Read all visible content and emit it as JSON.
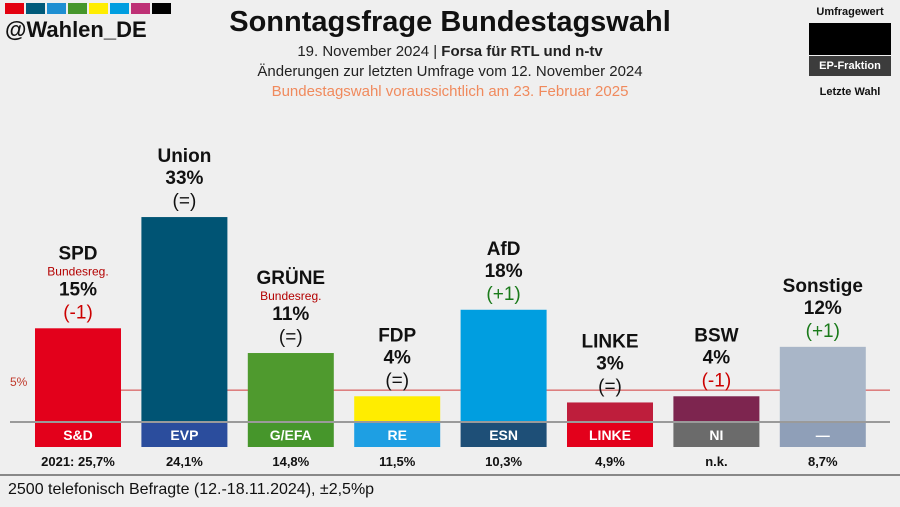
{
  "header": {
    "handle": "@Wahlen_DE",
    "brand_colors": [
      "#e3000f",
      "#005a7a",
      "#1e8fd2",
      "#46962b",
      "#ffed00",
      "#009ee0",
      "#be3075",
      "#000000"
    ],
    "title": "Sonntagsfrage Bundestagswahl",
    "subtitle_date": "19. November 2024 | ",
    "subtitle_source": "Forsa für RTL und n-tv",
    "subtitle_change": "Änderungen zur letzten Umfrage vom 12. November 2024",
    "subtitle_election": "Bundestagswahl voraussichtlich am 23. Februar 2025"
  },
  "legend": {
    "value_label": "Umfragewert",
    "group_label": "EP-Fraktion",
    "last_label": "Letzte Wahl"
  },
  "footer": {
    "note": "2500 telefonisch Befragte (12.-18.11.2024), ±2,5%p"
  },
  "chart_data": {
    "type": "bar",
    "title": "Sonntagsfrage Bundestagswahl",
    "ylim": [
      0,
      40
    ],
    "threshold": {
      "value": 5,
      "label": "5%"
    },
    "categories": [
      "SPD",
      "Union",
      "GRÜNE",
      "FDP",
      "AfD",
      "LINKE",
      "BSW",
      "Sonstige"
    ],
    "values": [
      15,
      33,
      11,
      4,
      18,
      3,
      4,
      12
    ],
    "value_labels": [
      "15%",
      "33%",
      "11%",
      "4%",
      "18%",
      "3%",
      "4%",
      "12%"
    ],
    "changes": [
      "(-1)",
      "(=)",
      "(=)",
      "(=)",
      "(+1)",
      "(=)",
      "(-1)",
      "(+1)"
    ],
    "change_colors": [
      "#cc0000",
      "#111111",
      "#111111",
      "#111111",
      "#1a7a1a",
      "#111111",
      "#cc0000",
      "#1a7a1a"
    ],
    "notes": [
      "Bundesreg.",
      "",
      "Bundesreg.",
      "",
      "",
      "",
      "",
      ""
    ],
    "bar_colors": [
      "#e3001b",
      "#005474",
      "#4f9a2e",
      "#ffed00",
      "#009ee0",
      "#be1e3c",
      "#7d254f",
      "#a9b6c8"
    ],
    "groups": [
      "S&D",
      "EVP",
      "G/EFA",
      "RE",
      "ESN",
      "LINKE",
      "NI",
      "—"
    ],
    "group_colors": [
      "#e3001b",
      "#2b4d9d",
      "#46962b",
      "#1e9fe3",
      "#1e4f77",
      "#e3001b",
      "#6b6b6b",
      "#8f9fb8"
    ],
    "last_election": [
      "2021: 25,7%",
      "24,1%",
      "14,8%",
      "11,5%",
      "10,3%",
      "4,9%",
      "n.k.",
      "8,7%"
    ]
  }
}
